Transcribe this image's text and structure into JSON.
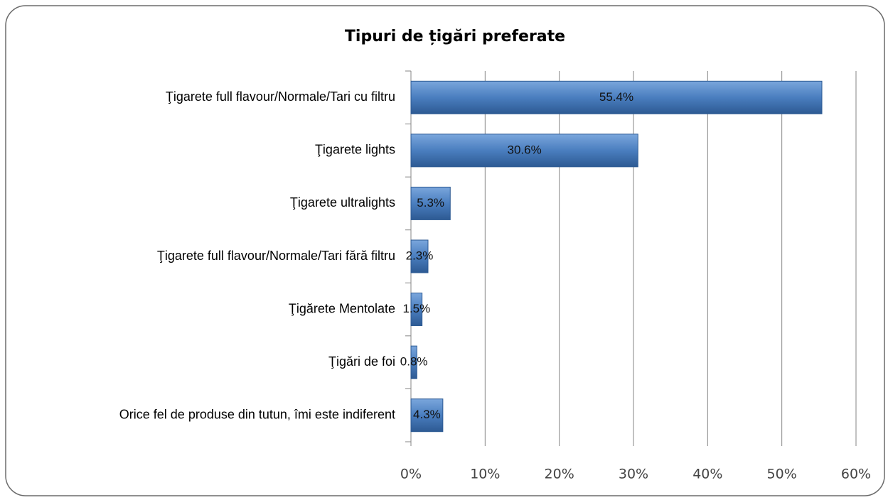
{
  "chart_data": {
    "type": "bar",
    "orientation": "horizontal",
    "title": "Tipuri de țigări preferate",
    "categories": [
      "Ţigarete full flavour/Normale/Tari cu filtru",
      "Ţigarete lights",
      "Ţigarete ultralights",
      "Ţigarete full flavour/Normale/Tari fără filtru",
      "Ţigărete Mentolate",
      "Ţigări de foi",
      "Orice fel de produse din tutun, îmi este indiferent"
    ],
    "values": [
      55.4,
      30.6,
      5.3,
      2.3,
      1.5,
      0.8,
      4.3
    ],
    "value_labels": [
      "55.4%",
      "30.6%",
      "5.3%",
      "2.3%",
      "1.5%",
      "0.8%",
      "4.3%"
    ],
    "color": "#4a7ebf",
    "xlim": [
      0,
      60
    ],
    "xticks": [
      {
        "value": 0,
        "label": "0%"
      },
      {
        "value": 10,
        "label": "10%"
      },
      {
        "value": 20,
        "label": "20%"
      },
      {
        "value": 30,
        "label": "30%"
      },
      {
        "value": 40,
        "label": "40%"
      },
      {
        "value": 50,
        "label": "50%"
      },
      {
        "value": 60,
        "label": "60%"
      }
    ],
    "grid": true
  }
}
